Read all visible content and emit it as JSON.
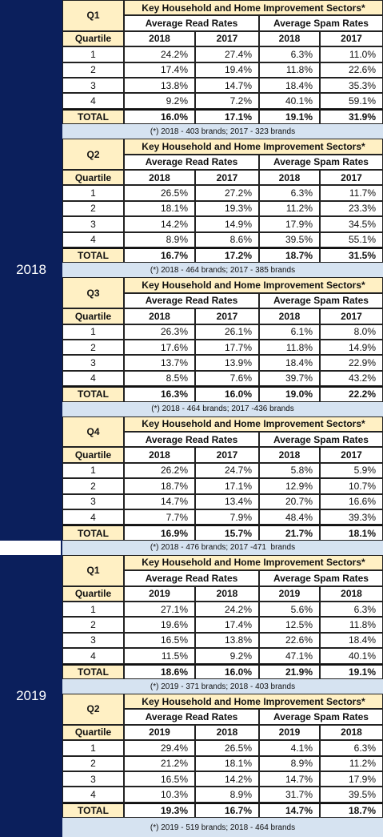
{
  "sections": [
    {
      "year": "2018",
      "blocks": [
        {
          "quarter": "Q1",
          "title": "Key Household and Home Improvement Sectors*",
          "subheaders": [
            "Average Read Rates",
            "Average Spam Rates"
          ],
          "columns": [
            "Quartile",
            "2018",
            "2017",
            "2018",
            "2017"
          ],
          "rows": [
            [
              "1",
              "24.2%",
              "27.4%",
              "6.3%",
              "11.0%"
            ],
            [
              "2",
              "17.4%",
              "19.4%",
              "11.8%",
              "22.6%"
            ],
            [
              "3",
              "13.8%",
              "14.7%",
              "18.4%",
              "35.3%"
            ],
            [
              "4",
              "9.2%",
              "7.2%",
              "40.1%",
              "59.1%"
            ]
          ],
          "total": [
            "TOTAL",
            "16.0%",
            "17.1%",
            "19.1%",
            "31.9%"
          ],
          "note": "(*) 2018 - 403 brands; 2017 - 323 brands"
        },
        {
          "quarter": "Q2",
          "title": "Key Household and Home Improvement Sectors*",
          "subheaders": [
            "Average Read Rates",
            "Average Spam Rates"
          ],
          "columns": [
            "Quartile",
            "2018",
            "2017",
            "2018",
            "2017"
          ],
          "rows": [
            [
              "1",
              "26.5%",
              "27.2%",
              "6.3%",
              "11.7%"
            ],
            [
              "2",
              "18.1%",
              "19.3%",
              "11.2%",
              "23.3%"
            ],
            [
              "3",
              "14.2%",
              "14.9%",
              "17.9%",
              "34.5%"
            ],
            [
              "4",
              "8.9%",
              "8.6%",
              "39.5%",
              "55.1%"
            ]
          ],
          "total": [
            "TOTAL",
            "16.7%",
            "17.2%",
            "18.7%",
            "31.5%"
          ],
          "note": "(*) 2018 - 464 brands; 2017 - 385 brands"
        },
        {
          "quarter": "Q3",
          "title": "Key Household and Home Improvement Sectors*",
          "subheaders": [
            "Average Read Rates",
            "Average Spam Rates"
          ],
          "columns": [
            "Quartile",
            "2018",
            "2017",
            "2018",
            "2017"
          ],
          "rows": [
            [
              "1",
              "26.3%",
              "26.1%",
              "6.1%",
              "8.0%"
            ],
            [
              "2",
              "17.6%",
              "17.7%",
              "11.8%",
              "14.9%"
            ],
            [
              "3",
              "13.7%",
              "13.9%",
              "18.4%",
              "22.9%"
            ],
            [
              "4",
              "8.5%",
              "7.6%",
              "39.7%",
              "43.2%"
            ]
          ],
          "total": [
            "TOTAL",
            "16.3%",
            "16.0%",
            "19.0%",
            "22.2%"
          ],
          "note": "(*) 2018 - 464 brands; 2017 -436 brands"
        },
        {
          "quarter": "Q4",
          "title": "Key Household and Home Improvement Sectors*",
          "subheaders": [
            "Average Read Rates",
            "Average Spam Rates"
          ],
          "columns": [
            "Quartile",
            "2018",
            "2017",
            "2018",
            "2017"
          ],
          "rows": [
            [
              "1",
              "26.2%",
              "24.7%",
              "5.8%",
              "5.9%"
            ],
            [
              "2",
              "18.7%",
              "17.1%",
              "12.9%",
              "10.7%"
            ],
            [
              "3",
              "14.7%",
              "13.4%",
              "20.7%",
              "16.6%"
            ],
            [
              "4",
              "7.7%",
              "7.9%",
              "48.4%",
              "39.3%"
            ]
          ],
          "total": [
            "TOTAL",
            "16.9%",
            "15.7%",
            "21.7%",
            "18.1%"
          ],
          "note": "(*) 2018 - 476 brands; 2017 -471  brands"
        }
      ]
    },
    {
      "year": "2019",
      "blocks": [
        {
          "quarter": "Q1",
          "title": "Key Household and Home Improvement Sectors*",
          "subheaders": [
            "Average Read Rates",
            "Average Spam Rates"
          ],
          "columns": [
            "Quartile",
            "2019",
            "2018",
            "2019",
            "2018"
          ],
          "rows": [
            [
              "1",
              "27.1%",
              "24.2%",
              "5.6%",
              "6.3%"
            ],
            [
              "2",
              "19.6%",
              "17.4%",
              "12.5%",
              "11.8%"
            ],
            [
              "3",
              "16.5%",
              "13.8%",
              "22.6%",
              "18.4%"
            ],
            [
              "4",
              "11.5%",
              "9.2%",
              "47.1%",
              "40.1%"
            ]
          ],
          "total": [
            "TOTAL",
            "18.6%",
            "16.0%",
            "21.9%",
            "19.1%"
          ],
          "note": "(*) 2019 - 371 brands; 2018 - 403 brands"
        },
        {
          "quarter": "Q2",
          "title": "Key Household and Home Improvement Sectors*",
          "subheaders": [
            "Average Read Rates",
            "Average Spam Rates"
          ],
          "columns": [
            "Quartile",
            "2019",
            "2018",
            "2019",
            "2018"
          ],
          "rows": [
            [
              "1",
              "29.4%",
              "26.5%",
              "4.1%",
              "6.3%"
            ],
            [
              "2",
              "21.2%",
              "18.1%",
              "8.9%",
              "11.2%"
            ],
            [
              "3",
              "16.5%",
              "14.2%",
              "14.7%",
              "17.9%"
            ],
            [
              "4",
              "10.3%",
              "8.9%",
              "31.7%",
              "39.5%"
            ]
          ],
          "total": [
            "TOTAL",
            "19.3%",
            "16.7%",
            "14.7%",
            "18.7%"
          ],
          "note": "(*) 2019 - 519 brands; 2018 - 464 brands"
        }
      ]
    }
  ]
}
